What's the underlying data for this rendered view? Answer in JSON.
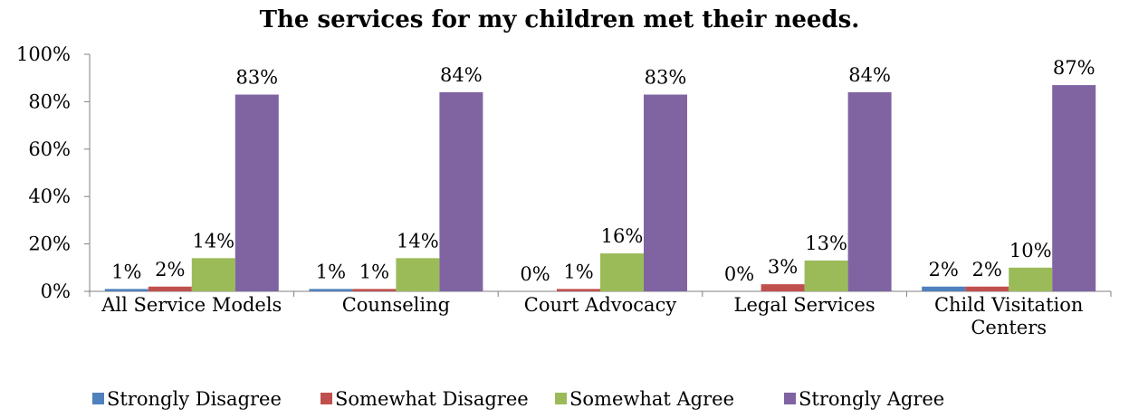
{
  "chart_data": {
    "type": "bar",
    "title": "The services for my children met their needs.",
    "xlabel": "",
    "ylabel": "",
    "ylim": [
      0,
      100
    ],
    "yticks": [
      "0%",
      "20%",
      "40%",
      "60%",
      "80%",
      "100%"
    ],
    "categories": [
      [
        "All Service Models"
      ],
      [
        "Counseling"
      ],
      [
        "Court Advocacy"
      ],
      [
        "Legal Services"
      ],
      [
        "Child Visitation",
        "Centers"
      ]
    ],
    "series": [
      {
        "name": "Strongly Disagree",
        "color": "#4F81BD",
        "values": [
          1,
          1,
          0,
          0,
          2
        ],
        "labels": [
          "1%",
          "1%",
          "0%",
          "0%",
          "2%"
        ]
      },
      {
        "name": "Somewhat Disagree",
        "color": "#C0504D",
        "values": [
          2,
          1,
          1,
          3,
          2
        ],
        "labels": [
          "2%",
          "1%",
          "1%",
          "3%",
          "2%"
        ]
      },
      {
        "name": "Somewhat Agree",
        "color": "#9BBB59",
        "values": [
          14,
          14,
          16,
          13,
          10
        ],
        "labels": [
          "14%",
          "14%",
          "16%",
          "13%",
          "10%"
        ]
      },
      {
        "name": "Strongly Agree",
        "color": "#8064A2",
        "values": [
          83,
          84,
          83,
          84,
          87
        ],
        "labels": [
          "83%",
          "84%",
          "83%",
          "84%",
          "87%"
        ]
      }
    ],
    "grid": false,
    "legend_position": "bottom"
  }
}
